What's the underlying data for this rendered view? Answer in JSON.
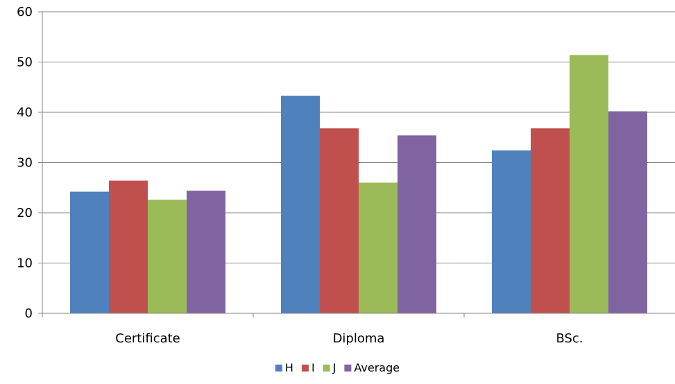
{
  "chart_data": {
    "type": "bar",
    "title": "",
    "xlabel": "",
    "ylabel": "",
    "categories": [
      "Certificate",
      "Diploma",
      "BSc."
    ],
    "series": [
      {
        "name": "H",
        "color": "#4F81BD",
        "values": [
          24.2,
          43.3,
          32.4
        ]
      },
      {
        "name": "I",
        "color": "#C0504D",
        "values": [
          26.4,
          36.8,
          36.8
        ]
      },
      {
        "name": "J",
        "color": "#9BBB59",
        "values": [
          22.6,
          26.0,
          51.4
        ]
      },
      {
        "name": "Average",
        "color": "#8064A2",
        "values": [
          24.4,
          35.4,
          40.2
        ]
      }
    ],
    "ylim": [
      0,
      60
    ],
    "yticks": [
      0,
      10,
      20,
      30,
      40,
      50,
      60
    ],
    "grid": true,
    "legend_position": "bottom"
  }
}
